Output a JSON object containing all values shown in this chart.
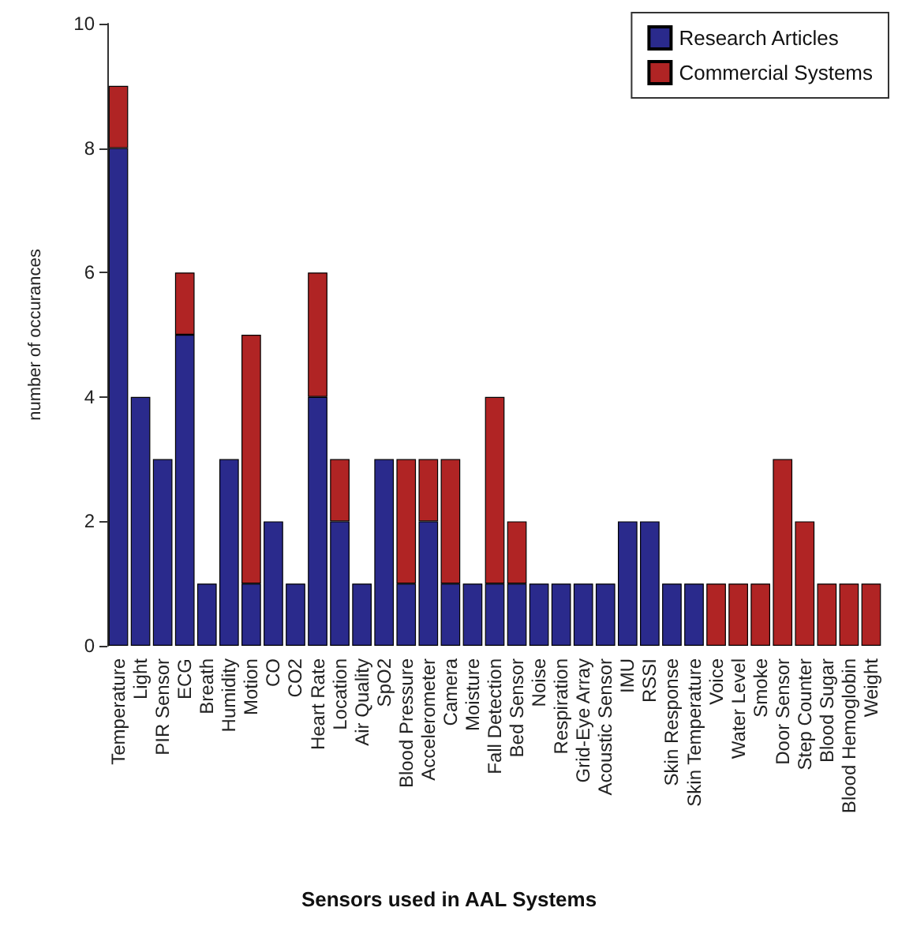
{
  "chart_data": {
    "type": "bar",
    "title": "Sensors used in AAL Systems",
    "ylabel": "number of occurances",
    "categories": [
      "Temperature",
      "Light",
      "PIR Sensor",
      "ECG",
      "Breath",
      "Humidity",
      "Motion",
      "CO",
      "CO2",
      "Heart Rate",
      "Location",
      "Air Quality",
      "SpO2",
      "Blood Pressure",
      "Accelerometer",
      "Camera",
      "Moisture",
      "Fall Detection",
      "Bed Sensor",
      "Noise",
      "Respiration",
      "Grid-Eye Array",
      "Acoustic Sensor",
      "IMU",
      "RSSI",
      "Skin Response",
      "Skin Temperature",
      "Voice",
      "Water Level",
      "Smoke",
      "Door Sensor",
      "Step Counter",
      "Blood Sugar",
      "Blood Hemoglobin",
      "Weight"
    ],
    "series": [
      {
        "name": "Research Articles",
        "color": "#2a2a8c",
        "values": [
          8,
          4,
          3,
          5,
          1,
          3,
          1,
          2,
          1,
          4,
          2,
          1,
          3,
          1,
          2,
          1,
          1,
          1,
          1,
          1,
          1,
          1,
          1,
          2,
          2,
          1,
          1,
          0,
          0,
          0,
          0,
          0,
          0,
          0,
          0
        ]
      },
      {
        "name": "Commercial Systems",
        "color": "#b02424",
        "values": [
          1,
          0,
          0,
          1,
          0,
          0,
          4,
          0,
          0,
          2,
          1,
          0,
          0,
          2,
          1,
          2,
          0,
          3,
          1,
          0,
          0,
          0,
          0,
          0,
          0,
          0,
          0,
          1,
          1,
          1,
          3,
          2,
          1,
          1,
          1
        ]
      }
    ],
    "stacked": true,
    "ylim": [
      0,
      10
    ],
    "yticks": [
      0,
      2,
      4,
      6,
      8,
      10
    ],
    "grid": false,
    "legend": "top right"
  }
}
